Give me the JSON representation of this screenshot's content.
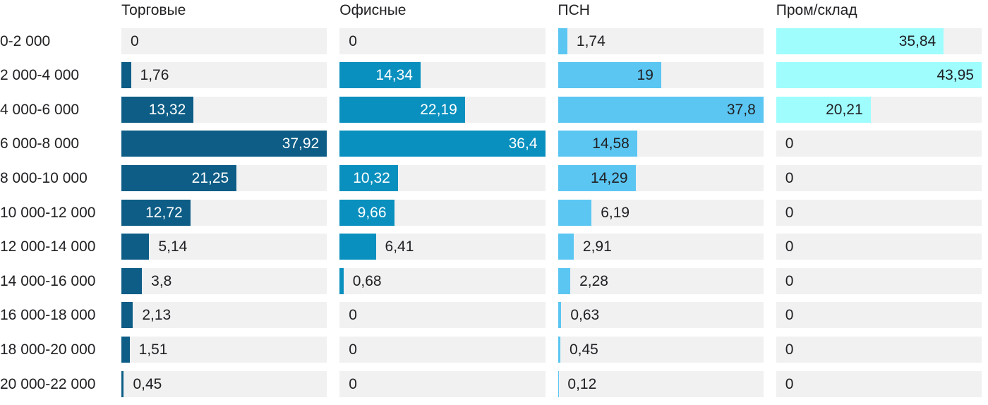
{
  "chart_data": {
    "type": "bar",
    "orientation": "horizontal",
    "title": "",
    "xlabel": "",
    "ylabel": "",
    "grid": false,
    "legend_position": "column headers on top",
    "scaling": "each column scaled independently to its own max value",
    "track_color": "#f1f1f2",
    "text_color": "#202124",
    "categories": [
      "0-2 000",
      "2 000-4 000",
      "4 000-6 000",
      "6 000-8 000",
      "8 000-10 000",
      "10 000-12 000",
      "12 000-14 000",
      "14 000-16 000",
      "16 000-18 000",
      "18 000-20 000",
      "20 000-22 000"
    ],
    "series": [
      {
        "name": "Торговые",
        "color": "#0d5d86",
        "inside_label_color": "#ffffff",
        "values": [
          0,
          1.76,
          13.32,
          37.92,
          21.25,
          12.72,
          5.14,
          3.8,
          2.13,
          1.51,
          0.45
        ],
        "labels": [
          "0",
          "1,76",
          "13,32",
          "37,92",
          "21,25",
          "12,72",
          "5,14",
          "3,8",
          "2,13",
          "1,51",
          "0,45"
        ]
      },
      {
        "name": "Офисные",
        "color": "#0a90be",
        "inside_label_color": "#ffffff",
        "values": [
          0,
          14.34,
          22.19,
          36.4,
          10.32,
          9.66,
          6.41,
          0.68,
          0,
          0,
          0
        ],
        "labels": [
          "0",
          "14,34",
          "22,19",
          "36,4",
          "10,32",
          "9,66",
          "6,41",
          "0,68",
          "0",
          "0",
          "0"
        ]
      },
      {
        "name": "ПСН",
        "color": "#5bc6f2",
        "inside_label_color": "#202124",
        "values": [
          1.74,
          19,
          37.8,
          14.58,
          14.29,
          6.19,
          2.91,
          2.28,
          0.63,
          0.45,
          0.12
        ],
        "labels": [
          "1,74",
          "19",
          "37,8",
          "14,58",
          "14,29",
          "6,19",
          "2,91",
          "2,28",
          "0,63",
          "0,45",
          "0,12"
        ]
      },
      {
        "name": "Пром/склад",
        "color": "#9ffdfe",
        "inside_label_color": "#202124",
        "values": [
          35.84,
          43.95,
          20.21,
          0,
          0,
          0,
          0,
          0,
          0,
          0,
          0
        ],
        "labels": [
          "35,84",
          "43,95",
          "20,21",
          "0",
          "0",
          "0",
          "0",
          "0",
          "0",
          "0",
          "0"
        ]
      }
    ]
  }
}
